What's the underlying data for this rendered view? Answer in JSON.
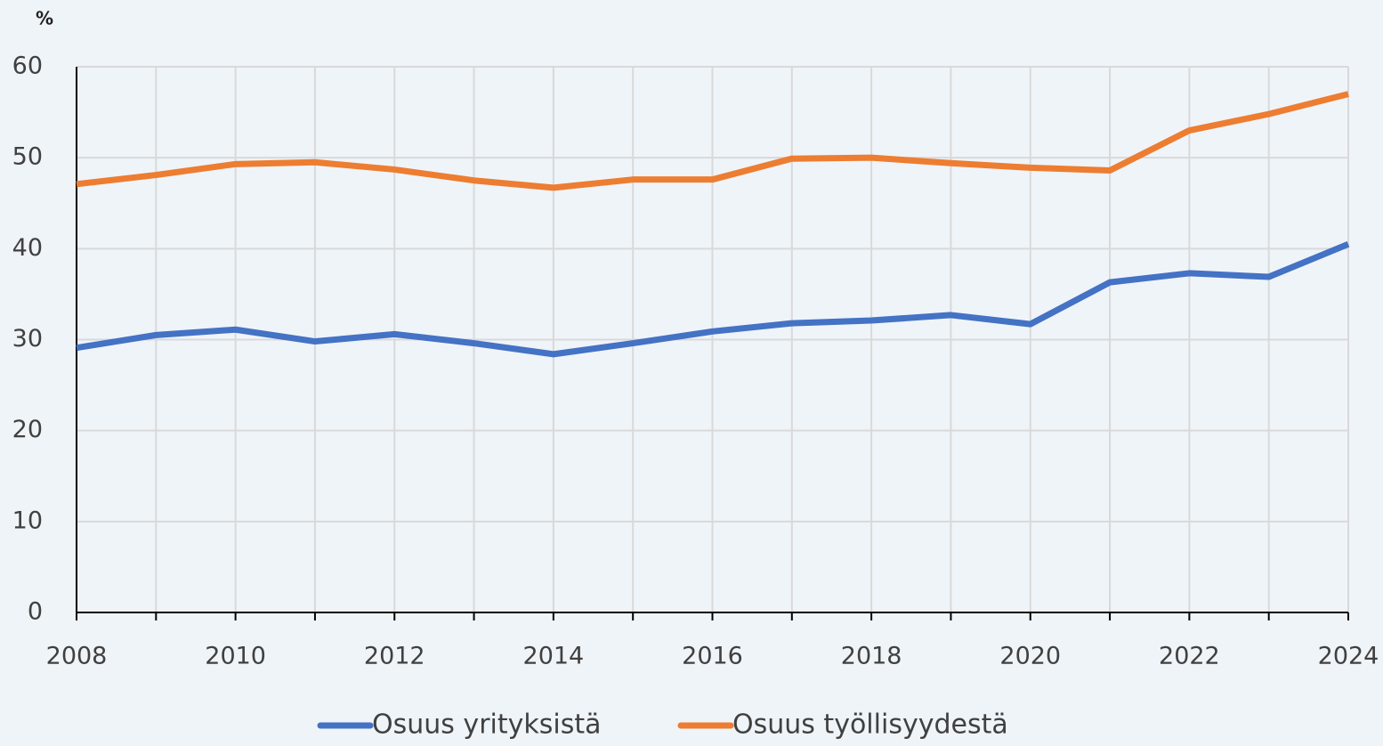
{
  "chart_data": {
    "type": "line",
    "y_unit_label": "%",
    "x": [
      2008,
      2009,
      2010,
      2011,
      2012,
      2013,
      2014,
      2015,
      2016,
      2017,
      2018,
      2019,
      2020,
      2021,
      2022,
      2023,
      2024
    ],
    "series": [
      {
        "name": "Osuus yrityksistä",
        "color": "#4472c4",
        "values": [
          29.1,
          30.5,
          31.1,
          29.8,
          30.6,
          29.6,
          28.4,
          29.6,
          30.9,
          31.8,
          32.1,
          32.7,
          31.7,
          36.3,
          37.3,
          36.9,
          40.5
        ]
      },
      {
        "name": "Osuus työllisyydestä",
        "color": "#ed7d31",
        "values": [
          47.1,
          48.1,
          49.3,
          49.5,
          48.7,
          47.5,
          46.7,
          47.6,
          47.6,
          49.9,
          50.0,
          49.4,
          48.9,
          48.6,
          53.0,
          54.8,
          57.0
        ]
      }
    ],
    "xlim": [
      2008,
      2024
    ],
    "xticks": [
      2008,
      2010,
      2012,
      2014,
      2016,
      2018,
      2020,
      2022,
      2024
    ],
    "ylim": [
      0,
      60
    ],
    "yticks": [
      0,
      10,
      20,
      30,
      40,
      50,
      60
    ],
    "grid": true,
    "legend": "bottom"
  }
}
